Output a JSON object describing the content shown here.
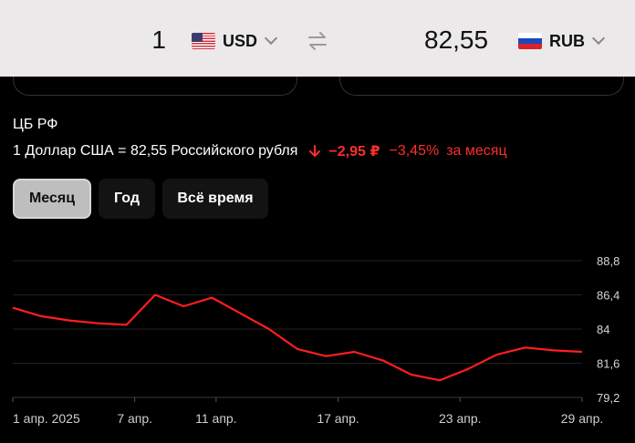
{
  "converter": {
    "from_amount": "1",
    "from_currency": "USD",
    "to_amount": "82,55",
    "to_currency": "RUB"
  },
  "info": {
    "source": "ЦБ РФ",
    "rate_text": "1 Доллар США = 82,55 Российского рубля",
    "change_abs": "−2,95 ₽",
    "change_pct": "−3,45%",
    "period": "за месяц"
  },
  "tabs": [
    {
      "label": "Месяц",
      "active": true
    },
    {
      "label": "Год",
      "active": false
    },
    {
      "label": "Всё время",
      "active": false
    }
  ],
  "colors": {
    "accent_red": "#ff2d2d",
    "converter_bg": "#ebe9ea",
    "active_tab_bg": "#bebebe",
    "inactive_tab_bg": "#131313"
  },
  "icons": {
    "from_flag": "us-flag-icon",
    "to_flag": "ru-flag-icon",
    "swap": "swap-arrows-icon",
    "dropdown": "chevron-down-icon",
    "change": "arrow-down-icon"
  },
  "chart_data": {
    "type": "line",
    "x_ticks": [
      "1 апр. 2025",
      "7 апр.",
      "11 апр.",
      "17 апр.",
      "23 апр.",
      "29 апр."
    ],
    "y_ticks": [
      "79,2",
      "81,6",
      "84",
      "86,4",
      "88,8"
    ],
    "ylim": [
      79.2,
      88.8
    ],
    "grid": true,
    "series": [
      {
        "color": "#ff1e1e",
        "values": [
          85.5,
          84.9,
          84.6,
          84.4,
          84.3,
          86.4,
          85.6,
          86.2,
          85.1,
          84.0,
          82.6,
          82.1,
          82.4,
          81.8,
          80.8,
          80.4,
          81.2,
          82.2,
          82.7,
          82.5,
          82.4
        ]
      }
    ]
  }
}
